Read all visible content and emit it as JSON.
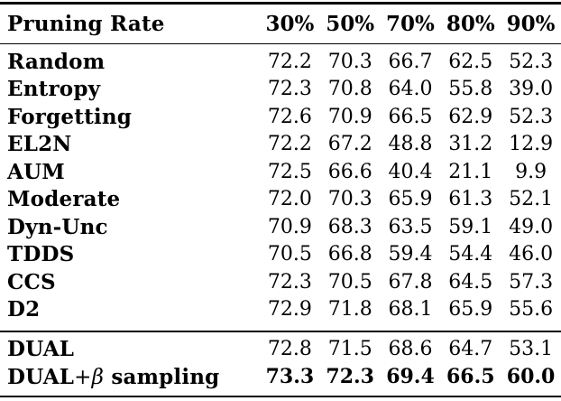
{
  "table": {
    "header": {
      "label": "Pruning Rate",
      "columns": [
        "30%",
        "50%",
        "70%",
        "80%",
        "90%"
      ]
    },
    "rows": [
      {
        "label": "Random",
        "values": [
          "72.2",
          "70.3",
          "66.7",
          "62.5",
          "52.3"
        ]
      },
      {
        "label": "Entropy",
        "values": [
          "72.3",
          "70.8",
          "64.0",
          "55.8",
          "39.0"
        ]
      },
      {
        "label": "Forgetting",
        "values": [
          "72.6",
          "70.9",
          "66.5",
          "62.9",
          "52.3"
        ]
      },
      {
        "label": "EL2N",
        "values": [
          "72.2",
          "67.2",
          "48.8",
          "31.2",
          "12.9"
        ]
      },
      {
        "label": "AUM",
        "values": [
          "72.5",
          "66.6",
          "40.4",
          "21.1",
          "9.9"
        ]
      },
      {
        "label": "Moderate",
        "values": [
          "72.0",
          "70.3",
          "65.9",
          "61.3",
          "52.1"
        ]
      },
      {
        "label": "Dyn-Unc",
        "values": [
          "70.9",
          "68.3",
          "63.5",
          "59.1",
          "49.0"
        ]
      },
      {
        "label": "TDDS",
        "values": [
          "70.5",
          "66.8",
          "59.4",
          "54.4",
          "46.0"
        ]
      },
      {
        "label": "CCS",
        "values": [
          "72.3",
          "70.5",
          "67.8",
          "64.5",
          "57.3"
        ]
      },
      {
        "label": "D2",
        "values": [
          "72.9",
          "71.8",
          "68.1",
          "65.9",
          "55.6"
        ]
      }
    ],
    "footer_rows": [
      {
        "label": "DUAL",
        "values": [
          "72.8",
          "71.5",
          "68.6",
          "64.7",
          "53.1"
        ],
        "bold_values": false
      },
      {
        "label_parts": [
          {
            "text": "DUAL",
            "bold": true,
            "italic": false
          },
          {
            "text": "+",
            "bold": false,
            "italic": false
          },
          {
            "text": "β",
            "bold": false,
            "italic": true
          },
          {
            "text": " sampling",
            "bold": true,
            "italic": false
          }
        ],
        "label": "DUAL+β sampling",
        "values": [
          "73.3",
          "72.3",
          "69.4",
          "66.5",
          "60.0"
        ],
        "bold_values": true
      }
    ],
    "colors": {
      "text": "#000000",
      "background": "#ffffff",
      "rule": "#000000"
    }
  }
}
